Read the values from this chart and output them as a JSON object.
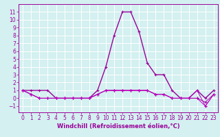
{
  "x": [
    0,
    1,
    2,
    3,
    4,
    5,
    6,
    7,
    8,
    9,
    10,
    11,
    12,
    13,
    14,
    15,
    16,
    17,
    18,
    19,
    20,
    21,
    22,
    23
  ],
  "series": [
    [
      1,
      1,
      1,
      1,
      0,
      0,
      0,
      0,
      0,
      1,
      4,
      8,
      11,
      11,
      8.5,
      4.5,
      3,
      3,
      1,
      0,
      0,
      1,
      0,
      1
    ],
    [
      1,
      0.5,
      0,
      0,
      0,
      0,
      0,
      0,
      0,
      0.5,
      1,
      1,
      1,
      1,
      1,
      1,
      0.5,
      0.5,
      0,
      0,
      0,
      0,
      -1,
      0.5
    ],
    [
      1,
      0.5,
      0,
      0,
      0,
      0,
      0,
      0,
      0,
      0.5,
      1,
      1,
      1,
      1,
      1,
      1,
      0.5,
      0.5,
      0,
      0,
      0,
      0,
      -0.5,
      0.5
    ],
    [
      1,
      0.5,
      0,
      0,
      0,
      0,
      0,
      0,
      0,
      0.5,
      1,
      1,
      1,
      1,
      1,
      1,
      0.5,
      0.5,
      0,
      0,
      0,
      1,
      -1,
      0.5
    ]
  ],
  "colors": [
    "#990099",
    "#cc00cc",
    "#aa00aa",
    "#bb00bb"
  ],
  "bg_color": "#d4f0f0",
  "grid_color": "#ffffff",
  "axis_color": "#990099",
  "xlabel": "Windchill (Refroidissement éolien,°C)",
  "xlabel_fontsize": 6,
  "tick_fontsize": 5.5,
  "ylim": [
    -1.8,
    12
  ],
  "xlim": [
    -0.5,
    23.5
  ],
  "yticks": [
    -1,
    0,
    1,
    2,
    3,
    4,
    5,
    6,
    7,
    8,
    9,
    10,
    11
  ],
  "xticks": [
    0,
    1,
    2,
    3,
    4,
    5,
    6,
    7,
    8,
    9,
    10,
    11,
    12,
    13,
    14,
    15,
    16,
    17,
    18,
    19,
    20,
    21,
    22,
    23
  ]
}
